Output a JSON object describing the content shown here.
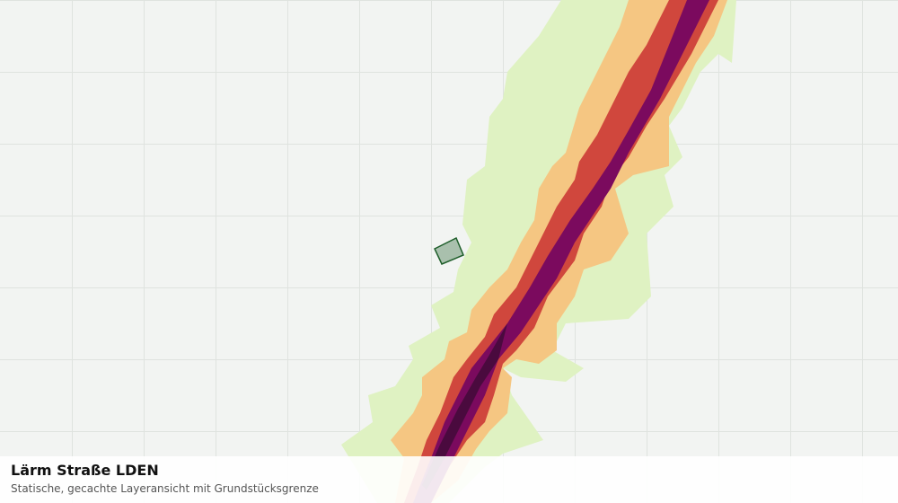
{
  "panel": {
    "title": "Lärm Straße LDEN",
    "subtitle": "Statische, gecachte Layeransicht mit Grundstücksgrenze"
  }
}
